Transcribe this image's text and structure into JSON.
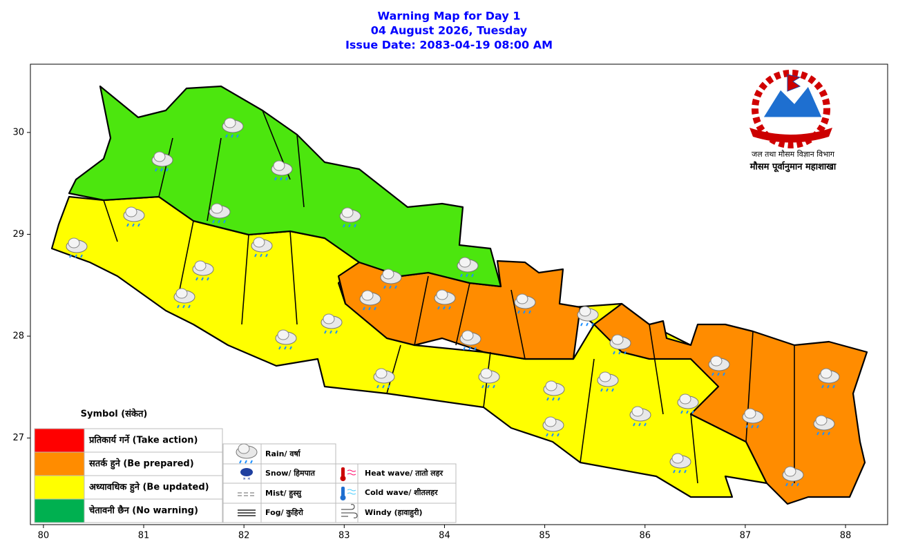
{
  "title": [
    "Warning Map for Day 1",
    "04 August 2026, Tuesday",
    "Issue Date: 2083-04-19 08:00 AM"
  ],
  "map": {
    "xlim": [
      79.87,
      88.42
    ],
    "ylim": [
      26.15,
      30.67
    ],
    "xticks": [
      80,
      81,
      82,
      83,
      84,
      85,
      86,
      87,
      88
    ],
    "yticks": [
      27,
      28,
      29,
      30
    ]
  },
  "agency": {
    "department": "जल तथा मौसम विज्ञान विभाग",
    "division": "मौसम पूर्वानुमान महाशाखा"
  },
  "warning_legend": {
    "title": "Symbol (संकेत)",
    "levels": [
      {
        "label": "प्रतिकार्य गर्ने (Take action)",
        "color": "#ff0000"
      },
      {
        "label": "सतर्क हुने (Be prepared)",
        "color": "#ff8c00"
      },
      {
        "label": "अध्यावधिक हुने (Be updated)",
        "color": "#ffff00"
      },
      {
        "label": "चेतावनी छैन (No warning)",
        "color": "#00b050"
      }
    ]
  },
  "symbols": [
    "Rain/ वर्षा",
    "Snow/ हिमपात",
    "Mist/ हुस्सु",
    "Fog/ कुहिरो",
    "Heat wave/ तातो लहर",
    "Cold wave/ शीतलहर",
    "Windy (हावाहुरी)"
  ]
}
